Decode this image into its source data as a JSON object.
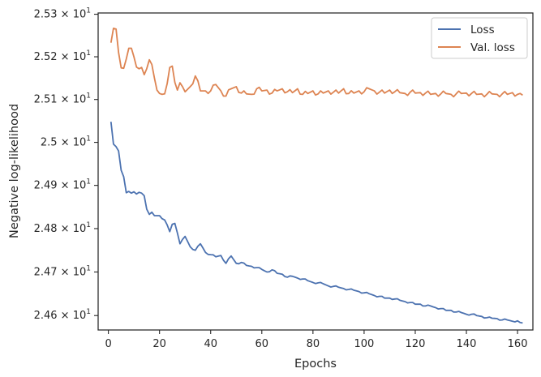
{
  "chart_data": {
    "type": "line",
    "title": "",
    "xlabel": "Epochs",
    "ylabel": "Negative log-likelihood",
    "xlim": [
      -4,
      166
    ],
    "ylim": [
      24.567,
      25.303
    ],
    "y_scale": "log",
    "grid": false,
    "legend_position": "top-right",
    "x_ticks": [
      0,
      20,
      40,
      60,
      80,
      100,
      120,
      140,
      160
    ],
    "x_tick_labels": [
      "0",
      "20",
      "40",
      "60",
      "80",
      "100",
      "120",
      "140",
      "160"
    ],
    "y_ticks": [
      24.6,
      24.7,
      24.8,
      24.9,
      25.0,
      25.1,
      25.2,
      25.3
    ],
    "y_tick_labels": [
      {
        "base": "2.46 × 10",
        "exp": "1"
      },
      {
        "base": "2.47 × 10",
        "exp": "1"
      },
      {
        "base": "2.48 × 10",
        "exp": "1"
      },
      {
        "base": "2.49 × 10",
        "exp": "1"
      },
      {
        "base": "2.5 × 10",
        "exp": "1"
      },
      {
        "base": "2.51 × 10",
        "exp": "1"
      },
      {
        "base": "2.52 × 10",
        "exp": "1"
      },
      {
        "base": "2.53 × 10",
        "exp": "1"
      }
    ],
    "series": [
      {
        "name": "Loss",
        "color": "#4c72b0",
        "x": [
          1,
          2,
          3,
          4,
          5,
          6,
          7,
          8,
          9,
          10,
          11,
          12,
          13,
          14,
          15,
          16,
          17,
          18,
          20,
          22,
          24,
          25,
          26,
          27,
          28,
          29,
          30,
          32,
          34,
          36,
          38,
          40,
          42,
          44,
          46,
          48,
          50,
          52,
          54,
          56,
          58,
          60,
          62,
          64,
          66,
          68,
          70,
          72,
          74,
          76,
          78,
          80,
          82,
          84,
          86,
          88,
          90,
          92,
          94,
          96,
          98,
          100,
          102,
          104,
          106,
          108,
          110,
          112,
          114,
          116,
          118,
          120,
          122,
          124,
          126,
          128,
          130,
          132,
          134,
          136,
          138,
          140,
          142,
          144,
          146,
          148,
          150,
          152,
          154,
          156,
          158,
          160,
          161,
          162
        ],
        "values": [
          25.048,
          24.996,
          24.99,
          24.98,
          24.935,
          24.92,
          24.883,
          24.886,
          24.882,
          24.885,
          24.88,
          24.884,
          24.882,
          24.876,
          24.845,
          24.833,
          24.838,
          24.83,
          24.83,
          24.82,
          24.793,
          24.81,
          24.812,
          24.79,
          24.765,
          24.775,
          24.782,
          24.758,
          24.75,
          24.765,
          24.745,
          24.74,
          24.735,
          24.738,
          24.72,
          24.737,
          24.72,
          24.722,
          24.715,
          24.713,
          24.71,
          24.706,
          24.7,
          24.705,
          24.697,
          24.695,
          24.688,
          24.69,
          24.686,
          24.684,
          24.68,
          24.676,
          24.675,
          24.673,
          24.668,
          24.667,
          24.665,
          24.662,
          24.66,
          24.658,
          24.655,
          24.652,
          24.65,
          24.646,
          24.644,
          24.64,
          24.64,
          24.638,
          24.635,
          24.632,
          24.63,
          24.626,
          24.626,
          24.622,
          24.622,
          24.618,
          24.616,
          24.612,
          24.612,
          24.608,
          24.607,
          24.603,
          24.603,
          24.6,
          24.598,
          24.595,
          24.594,
          24.593,
          24.59,
          24.59,
          24.587,
          24.588,
          24.584,
          24.583
        ],
        "oscillation": 0.004
      },
      {
        "name": "Val. loss",
        "color": "#dd8452",
        "x": [
          1,
          2,
          3,
          4,
          5,
          6,
          7,
          8,
          9,
          10,
          11,
          12,
          13,
          14,
          15,
          16,
          17,
          18,
          19,
          20,
          21,
          22,
          23,
          24,
          25,
          26,
          27,
          28,
          29,
          30,
          32,
          34,
          36,
          38,
          40,
          42,
          44,
          46,
          48,
          50,
          52,
          54,
          56,
          58,
          60,
          62,
          64,
          66,
          68,
          70,
          72,
          74,
          76,
          78,
          80,
          82,
          84,
          86,
          88,
          90,
          92,
          94,
          96,
          98,
          100,
          102,
          104,
          106,
          108,
          110,
          112,
          114,
          116,
          118,
          120,
          122,
          124,
          126,
          128,
          130,
          132,
          134,
          136,
          138,
          140,
          142,
          144,
          146,
          148,
          150,
          152,
          154,
          156,
          158,
          160,
          161,
          162
        ],
        "values": [
          25.233,
          25.267,
          25.265,
          25.21,
          25.174,
          25.173,
          25.195,
          25.22,
          25.22,
          25.2,
          25.176,
          25.172,
          25.175,
          25.158,
          25.172,
          25.193,
          25.182,
          25.15,
          25.122,
          25.114,
          25.112,
          25.113,
          25.137,
          25.175,
          25.178,
          25.14,
          25.122,
          25.139,
          25.13,
          25.118,
          25.13,
          25.155,
          25.12,
          25.12,
          25.12,
          25.135,
          25.12,
          25.108,
          25.125,
          25.13,
          25.115,
          25.113,
          25.112,
          25.125,
          25.12,
          25.122,
          25.115,
          25.12,
          25.125,
          25.118,
          25.116,
          25.125,
          25.112,
          25.114,
          25.12,
          25.113,
          25.115,
          25.12,
          25.117,
          25.115,
          25.125,
          25.114,
          25.115,
          25.12,
          25.118,
          25.125,
          25.12,
          25.117,
          25.115,
          25.122,
          25.118,
          25.116,
          25.114,
          25.117,
          25.115,
          25.116,
          25.115,
          25.112,
          25.114,
          25.113,
          25.114,
          25.112,
          25.113,
          25.114,
          25.115,
          25.114,
          25.112,
          25.113,
          25.112,
          25.113,
          25.112,
          25.113,
          25.112,
          25.116,
          25.112,
          25.114,
          25.11
        ],
        "oscillation": 0.012
      }
    ]
  }
}
